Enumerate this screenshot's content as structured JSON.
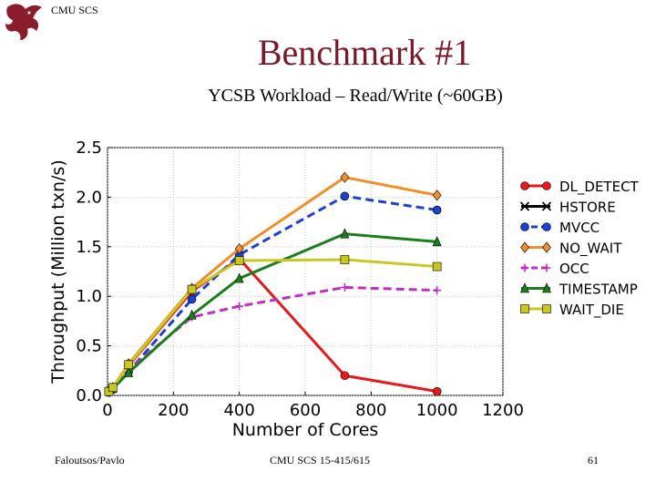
{
  "header": {
    "brand": "CMU SCS",
    "logo_icon": "dragon-logo-icon"
  },
  "slide": {
    "title": "Benchmark #1",
    "subtitle": "YCSB Workload – Read/Write (~60GB)"
  },
  "footer": {
    "left": "Faloutsos/Pavlo",
    "center": "CMU SCS 15-415/615",
    "page": "61"
  },
  "chart_data": {
    "type": "line",
    "xlabel": "Number of Cores",
    "ylabel": "Throughput (Million txn/s)",
    "xlim": [
      0,
      1200
    ],
    "ylim": [
      0,
      2.5
    ],
    "xticks": [
      "0",
      "200",
      "400",
      "600",
      "800",
      "1000",
      "1200"
    ],
    "yticks": [
      "0.0",
      "0.5",
      "1.0",
      "1.5",
      "2.0",
      "2.5"
    ],
    "grid": true,
    "legend": "right",
    "series": [
      {
        "name": "DL_DETECT",
        "color": "#e41a1c",
        "dash": "solid",
        "marker": "circle",
        "x": [
          4,
          16,
          64,
          256,
          400,
          720,
          1000
        ],
        "y": [
          0.05,
          0.08,
          0.3,
          1.05,
          1.38,
          0.2,
          0.04
        ]
      },
      {
        "name": "HSTORE",
        "color": "#000000",
        "dash": "solid",
        "marker": "x",
        "x": [],
        "y": []
      },
      {
        "name": "MVCC",
        "color": "#1f3fcf",
        "dash": "dashed",
        "marker": "circle",
        "x": [
          4,
          16,
          64,
          256,
          400,
          720,
          1000
        ],
        "y": [
          0.03,
          0.06,
          0.24,
          0.97,
          1.42,
          2.01,
          1.87
        ]
      },
      {
        "name": "NO_WAIT",
        "color": "#f28e2b",
        "dash": "solid",
        "marker": "diamond",
        "x": [
          4,
          16,
          64,
          256,
          400,
          720,
          1000
        ],
        "y": [
          0.05,
          0.08,
          0.32,
          1.08,
          1.48,
          2.2,
          2.02
        ]
      },
      {
        "name": "OCC",
        "color": "#c02fc0",
        "dash": "dashed",
        "marker": "plus",
        "x": [
          4,
          16,
          64,
          256,
          400,
          720,
          1000
        ],
        "y": [
          0.04,
          0.07,
          0.26,
          0.79,
          0.9,
          1.09,
          1.06
        ]
      },
      {
        "name": "TIMESTAMP",
        "color": "#1a7f1a",
        "dash": "solid",
        "marker": "triangle",
        "x": [
          4,
          16,
          64,
          256,
          400,
          720,
          1000
        ],
        "y": [
          0.04,
          0.07,
          0.23,
          0.81,
          1.18,
          1.63,
          1.55
        ]
      },
      {
        "name": "WAIT_DIE",
        "color": "#c8c820",
        "dash": "solid",
        "marker": "square",
        "x": [
          4,
          16,
          64,
          256,
          400,
          720,
          1000
        ],
        "y": [
          0.04,
          0.08,
          0.31,
          1.07,
          1.36,
          1.37,
          1.3
        ]
      }
    ]
  }
}
